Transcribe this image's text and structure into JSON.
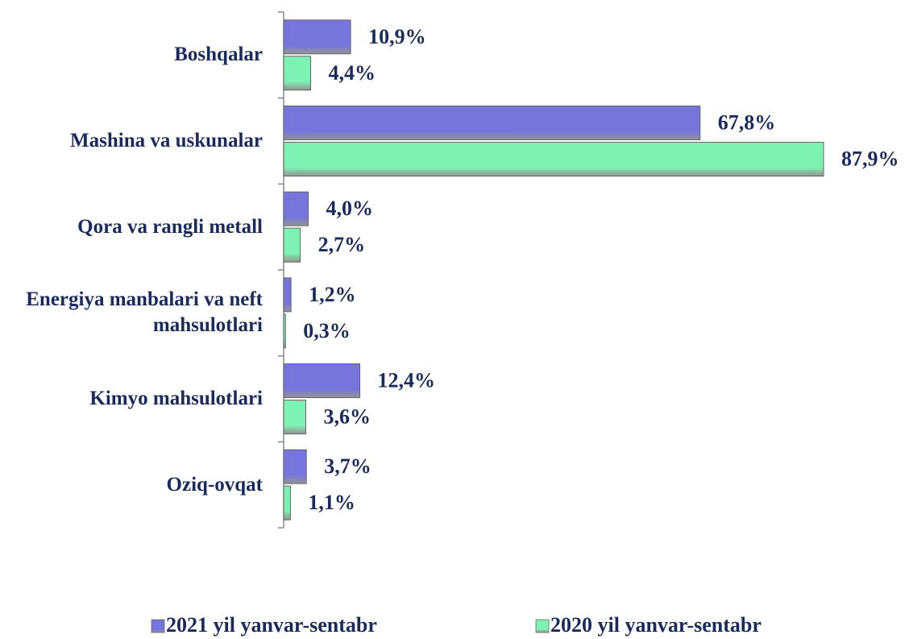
{
  "chart_data": {
    "type": "bar",
    "orientation": "horizontal",
    "categories": [
      "Boshqalar",
      "Mashina va uskunalar",
      "Qora va rangli metall",
      "Energiya manbalari va neft mahsulotlari",
      "Kimyo mahsulotlari",
      "Oziq-ovqat"
    ],
    "series": [
      {
        "name": "2021 yil yanvar-sentabr",
        "color": "#7575dd",
        "values": [
          10.9,
          67.8,
          4.0,
          1.2,
          12.4,
          3.7
        ],
        "value_labels": [
          "10,9%",
          "67,8%",
          "4,0%",
          "1,2%",
          "12,4%",
          "3,7%"
        ]
      },
      {
        "name": "2020 yil yanvar-sentabr",
        "color": "#7ef2b2",
        "values": [
          4.4,
          87.9,
          2.7,
          0.3,
          3.6,
          1.1
        ],
        "value_labels": [
          "4,4%",
          "87,9%",
          "2,7%",
          "0,3%",
          "3,6%",
          "1,1%"
        ]
      }
    ],
    "legend": "bottom"
  }
}
